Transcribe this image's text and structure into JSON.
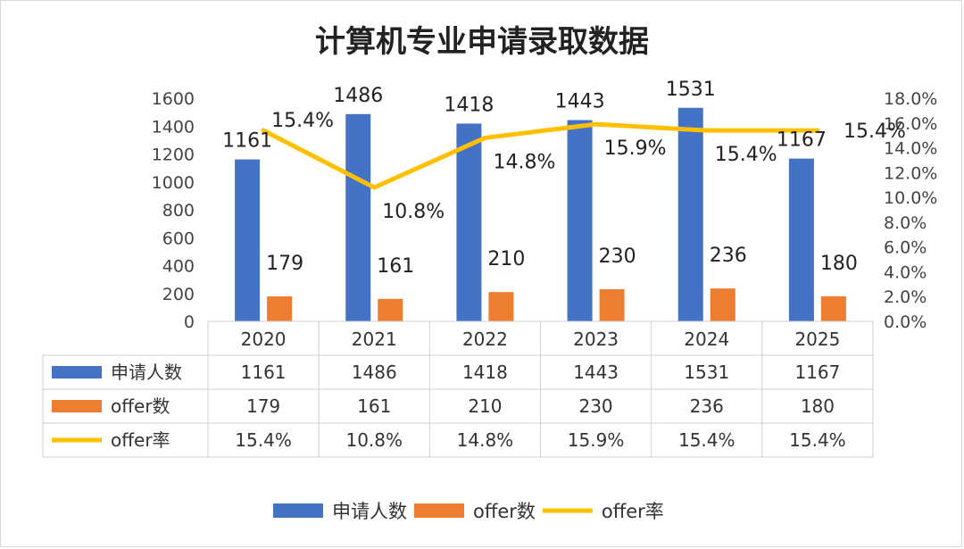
{
  "chart_data": {
    "type": "bar",
    "title": "计算机专业申请录取数据",
    "categories": [
      "2020",
      "2021",
      "2022",
      "2023",
      "2024",
      "2025"
    ],
    "series": [
      {
        "name": "申请人数",
        "kind": "bar",
        "axis": "left",
        "color": "#4472C4",
        "values": [
          1161,
          1486,
          1418,
          1443,
          1531,
          1167
        ],
        "labels": [
          "1161",
          "1486",
          "1418",
          "1443",
          "1531",
          "1167"
        ]
      },
      {
        "name": "offer数",
        "kind": "bar",
        "axis": "left",
        "color": "#ED7D31",
        "values": [
          179,
          161,
          210,
          230,
          236,
          180
        ],
        "labels": [
          "179",
          "161",
          "210",
          "230",
          "236",
          "180"
        ]
      },
      {
        "name": "offer率",
        "kind": "line",
        "axis": "right",
        "color": "#FFC000",
        "values": [
          15.4,
          10.8,
          14.8,
          15.9,
          15.4,
          15.4
        ],
        "labels": [
          "15.4%",
          "10.8%",
          "14.8%",
          "15.9%",
          "15.4%",
          "15.4%"
        ]
      }
    ],
    "y_left": {
      "min": 0,
      "max": 1600,
      "step": 200,
      "ticks": [
        "0",
        "200",
        "400",
        "600",
        "800",
        "1000",
        "1200",
        "1400",
        "1600"
      ]
    },
    "y_right": {
      "min": 0,
      "max": 18,
      "step": 2,
      "ticks": [
        "0.0%",
        "2.0%",
        "4.0%",
        "6.0%",
        "8.0%",
        "10.0%",
        "12.0%",
        "14.0%",
        "16.0%",
        "18.0%"
      ]
    },
    "data_table": true,
    "legend": "bottom",
    "grid": false
  }
}
